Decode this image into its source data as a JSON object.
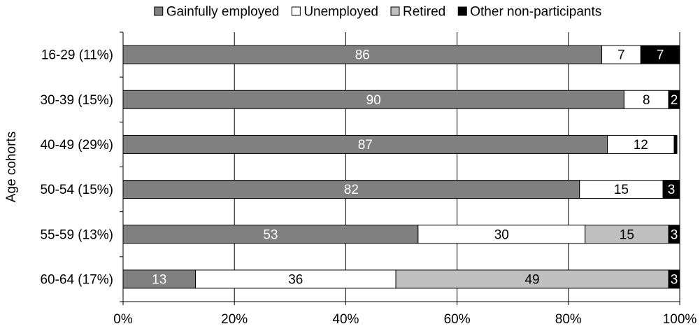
{
  "chart_data": {
    "type": "bar",
    "orientation": "horizontal",
    "stacked": true,
    "categories": [
      "16-29 (11%)",
      "30-39 (15%)",
      "40-49 (29%)",
      "50-54 (15%)",
      "55-59 (13%)",
      "60-64 (17%)"
    ],
    "series": [
      {
        "name": "Gainfully employed",
        "color": "#808080",
        "label_color": "#ffffff",
        "values": [
          86,
          90,
          87,
          82,
          53,
          13
        ],
        "labels": [
          "86",
          "90",
          "87",
          "82",
          "53",
          "13"
        ]
      },
      {
        "name": "Unemployed",
        "color": "#ffffff",
        "label_color": "#000000",
        "values": [
          7,
          8,
          12,
          15,
          30,
          36
        ],
        "labels": [
          "7",
          "8",
          "12",
          "15",
          "30",
          "36"
        ]
      },
      {
        "name": "Retired",
        "color": "#c0c0c0",
        "label_color": "#000000",
        "values": [
          0,
          0,
          0,
          0,
          15,
          49
        ],
        "labels": [
          "",
          "",
          "",
          "",
          "15",
          "49"
        ]
      },
      {
        "name": "Other non-participants",
        "color": "#000000",
        "label_color": "#ffffff",
        "values": [
          7,
          2,
          0.5,
          3,
          3,
          3
        ],
        "labels": [
          "7",
          "2",
          "",
          "3",
          "3",
          "3"
        ]
      }
    ],
    "xlim": [
      0,
      100
    ],
    "x_ticks": [
      "0%",
      "20%",
      "40%",
      "60%",
      "80%",
      "100%"
    ],
    "xlabel": "",
    "ylabel": "Age cohorts",
    "grid": "vertical",
    "legend": "top"
  }
}
